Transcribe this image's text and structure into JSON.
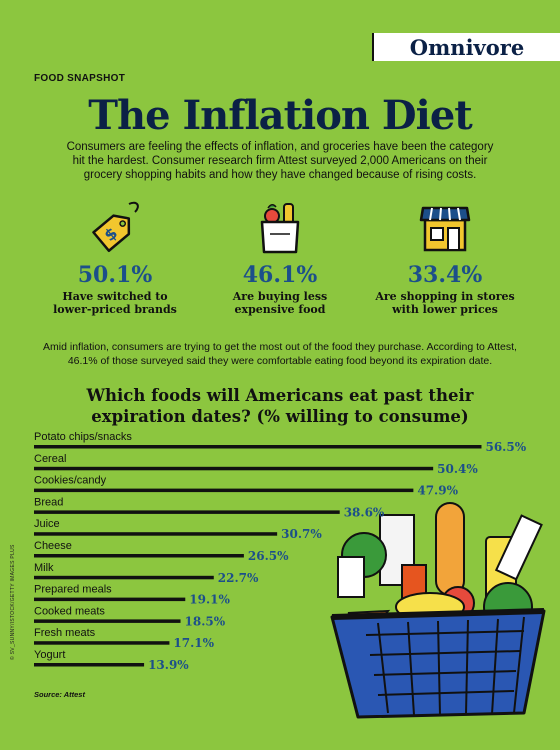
{
  "brand": "Omnivore",
  "section_label": "FOOD SNAPSHOT",
  "title": "The Inflation Diet",
  "intro": "Consumers are feeling the effects of inflation, and groceries have been the category hit the hardest. Consumer research firm Attest surveyed 2,000 Americans on their grocery shopping habits and how they have changed because of rising costs.",
  "stats": [
    {
      "icon": "price-tag-icon",
      "value": "50.1%",
      "line1": "Have switched to",
      "line2": "lower-priced brands"
    },
    {
      "icon": "grocery-bag-icon",
      "value": "46.1%",
      "line1": "Are buying less",
      "line2": "expensive food"
    },
    {
      "icon": "storefront-icon",
      "value": "33.4%",
      "line1": "Are shopping in stores",
      "line2": "with lower prices"
    }
  ],
  "paragraph": "Amid inflation, consumers are trying to get the most out of the food they purchase. According to Attest, 46.1% of those surveyed said they were comfortable eating food beyond its expiration date.",
  "chart_title_line1": "Which foods will Americans eat past their",
  "chart_title_line2": "expiration dates? (% willing to consume)",
  "source": "Source: Attest",
  "credit": "© SV_SUNNY/ISTOCK/GETTY IMAGES PLUS",
  "colors": {
    "background": "#8cc63f",
    "navy": "#0b2146",
    "value_blue": "#1c4f8a",
    "bar": "#111111"
  },
  "chart_data": {
    "type": "bar",
    "orientation": "horizontal",
    "categories": [
      "Potato chips/snacks",
      "Cereal",
      "Cookies/candy",
      "Bread",
      "Juice",
      "Cheese",
      "Milk",
      "Prepared meals",
      "Cooked meats",
      "Fresh meats",
      "Yogurt"
    ],
    "values": [
      56.5,
      50.4,
      47.9,
      38.6,
      30.7,
      26.5,
      22.7,
      19.1,
      18.5,
      17.1,
      13.9
    ],
    "value_labels": [
      "56.5%",
      "50.4%",
      "47.9%",
      "38.6%",
      "30.7%",
      "26.5%",
      "22.7%",
      "19.1%",
      "18.5%",
      "17.1%",
      "13.9%"
    ],
    "unit": "%",
    "grid": false,
    "legend": "none"
  }
}
